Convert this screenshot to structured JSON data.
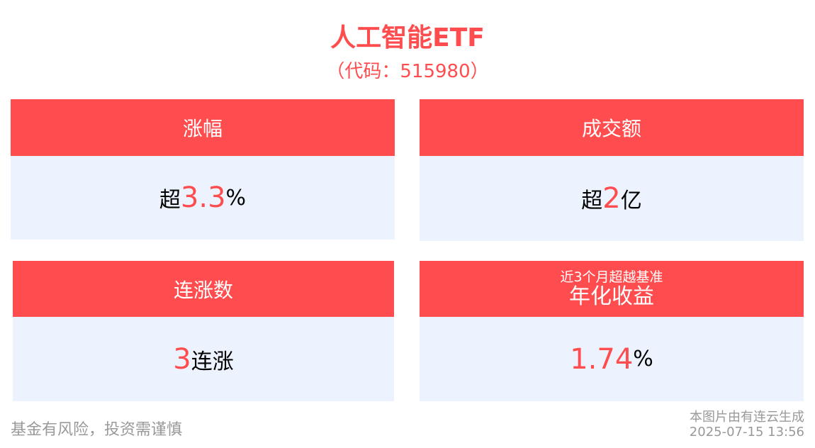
{
  "header": {
    "title": "人工智能ETF",
    "code": "（代码：515980）"
  },
  "cards": [
    {
      "label": "涨幅",
      "prefix": "超",
      "value": "3.3",
      "suffix": "%"
    },
    {
      "label": "成交额",
      "prefix": "超",
      "value": "2",
      "suffix": "亿"
    },
    {
      "label": "连涨数",
      "prefix": "",
      "value": "3",
      "suffix": "连涨"
    },
    {
      "label_sub": "近3个月超越基准",
      "label": "年化收益",
      "prefix": "",
      "value": "1.74",
      "suffix": "%"
    }
  ],
  "footer": {
    "disclaimer": "基金有风险，投资需谨慎",
    "source": "本图片由有连云生成",
    "timestamp": "2025-07-15 13:56"
  },
  "colors": {
    "accent": "#ff4d4f",
    "card_bg": "#ecf3fe",
    "muted": "#999999"
  }
}
